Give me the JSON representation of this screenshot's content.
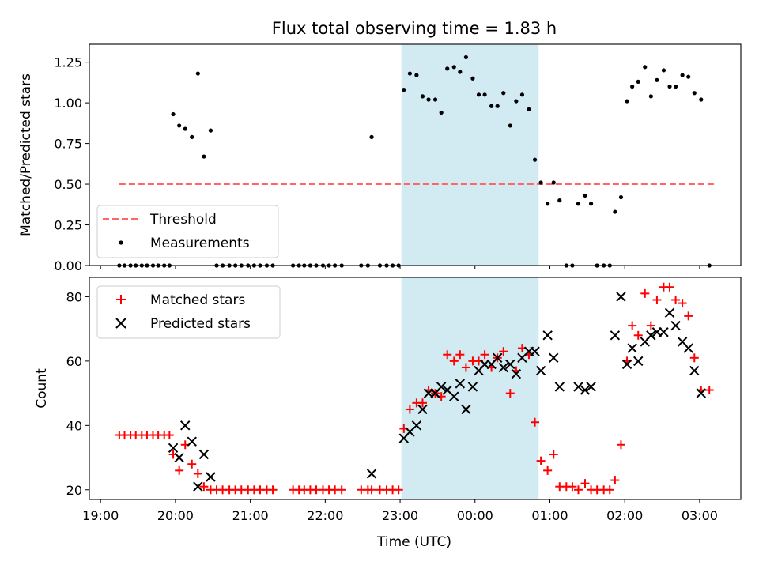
{
  "figure": {
    "title": "Flux total observing time = 1.83 h"
  },
  "chart_data": [
    {
      "type": "scatter",
      "panel": "top",
      "title": "Flux total observing time = 1.83 h",
      "xlabel": "",
      "ylabel": "Matched/Predicted stars",
      "x_tick_labels": [
        "19:00",
        "20:00",
        "21:00",
        "22:00",
        "23:00",
        "00:00",
        "01:00",
        "02:00",
        "03:00"
      ],
      "xlim_hours": [
        18.85,
        27.55
      ],
      "ylim": [
        0.0,
        1.36
      ],
      "y_ticks": [
        0.0,
        0.25,
        0.5,
        0.75,
        1.0,
        1.25
      ],
      "y_tick_labels": [
        "0.00",
        "0.25",
        "0.50",
        "0.75",
        "1.00",
        "1.25"
      ],
      "shaded_interval_hours": [
        23.017,
        24.85
      ],
      "shaded_color": "#add8e6",
      "legend_position": "lower-left",
      "series": [
        {
          "name": "Threshold",
          "style": "dashed-line",
          "color": "#ff6666",
          "x_hours": [
            19.25,
            27.2
          ],
          "y": [
            0.5,
            0.5
          ]
        },
        {
          "name": "Measurements",
          "style": "dot",
          "color": "#000000",
          "x_hours": [
            19.25,
            19.32,
            19.4,
            19.47,
            19.55,
            19.62,
            19.7,
            19.77,
            19.85,
            19.92,
            19.97,
            20.05,
            20.13,
            20.22,
            20.3,
            20.38,
            20.47,
            20.55,
            20.63,
            20.72,
            20.8,
            20.88,
            20.97,
            21.05,
            21.13,
            21.22,
            21.3,
            21.57,
            21.65,
            21.72,
            21.8,
            21.88,
            21.97,
            22.05,
            22.13,
            22.22,
            22.48,
            22.57,
            22.62,
            22.73,
            22.82,
            22.9,
            22.98,
            23.05,
            23.13,
            23.22,
            23.3,
            23.38,
            23.47,
            23.55,
            23.63,
            23.72,
            23.8,
            23.88,
            23.97,
            24.05,
            24.13,
            24.22,
            24.3,
            24.38,
            24.47,
            24.55,
            24.63,
            24.72,
            24.8,
            24.88,
            24.97,
            25.05,
            25.13,
            25.22,
            25.3,
            25.38,
            25.47,
            25.55,
            25.63,
            25.72,
            25.8,
            25.87,
            25.95,
            26.03,
            26.1,
            26.18,
            26.27,
            26.35,
            26.43,
            26.52,
            26.6,
            26.68,
            26.77,
            26.85,
            26.93,
            27.02,
            27.13
          ],
          "y": [
            0.0,
            0.0,
            0.0,
            0.0,
            0.0,
            0.0,
            0.0,
            0.0,
            0.0,
            0.0,
            0.93,
            0.86,
            0.84,
            0.79,
            1.18,
            0.67,
            0.83,
            0.0,
            0.0,
            0.0,
            0.0,
            0.0,
            0.0,
            0.0,
            0.0,
            0.0,
            0.0,
            0.0,
            0.0,
            0.0,
            0.0,
            0.0,
            0.0,
            0.0,
            0.0,
            0.0,
            0.0,
            0.0,
            0.79,
            0.0,
            0.0,
            0.0,
            0.0,
            1.08,
            1.18,
            1.17,
            1.04,
            1.02,
            1.02,
            0.94,
            1.21,
            1.22,
            1.19,
            1.28,
            1.15,
            1.05,
            1.05,
            0.98,
            0.98,
            1.06,
            0.86,
            1.01,
            1.05,
            0.96,
            0.65,
            0.51,
            0.38,
            0.51,
            0.4,
            0.0,
            0.0,
            0.38,
            0.43,
            0.38,
            0.0,
            0.0,
            0.0,
            0.33,
            0.42,
            1.01,
            1.1,
            1.13,
            1.22,
            1.04,
            1.14,
            1.2,
            1.1,
            1.1,
            1.17,
            1.16,
            1.06,
            1.02,
            0.0
          ]
        }
      ]
    },
    {
      "type": "scatter",
      "panel": "bottom",
      "title": "",
      "xlabel": "Time (UTC)",
      "ylabel": "Count",
      "x_tick_labels": [
        "19:00",
        "20:00",
        "21:00",
        "22:00",
        "23:00",
        "00:00",
        "01:00",
        "02:00",
        "03:00"
      ],
      "xlim_hours": [
        18.85,
        27.55
      ],
      "ylim": [
        17,
        86
      ],
      "y_ticks": [
        20,
        40,
        60,
        80
      ],
      "y_tick_labels": [
        "20",
        "40",
        "60",
        "80"
      ],
      "shaded_interval_hours": [
        23.017,
        24.85
      ],
      "shaded_color": "#add8e6",
      "legend_position": "upper-left",
      "series": [
        {
          "name": "Matched stars",
          "marker": "plus",
          "color": "#ff0000",
          "x_hours": [
            19.25,
            19.32,
            19.4,
            19.47,
            19.55,
            19.62,
            19.7,
            19.77,
            19.85,
            19.92,
            19.97,
            20.05,
            20.13,
            20.22,
            20.3,
            20.38,
            20.47,
            20.55,
            20.63,
            20.72,
            20.8,
            20.88,
            20.97,
            21.05,
            21.13,
            21.22,
            21.3,
            21.57,
            21.65,
            21.72,
            21.8,
            21.88,
            21.97,
            22.05,
            22.13,
            22.22,
            22.48,
            22.57,
            22.62,
            22.73,
            22.82,
            22.9,
            22.98,
            23.05,
            23.13,
            23.22,
            23.3,
            23.38,
            23.47,
            23.55,
            23.63,
            23.72,
            23.8,
            23.88,
            23.97,
            24.05,
            24.13,
            24.22,
            24.3,
            24.38,
            24.47,
            24.55,
            24.63,
            24.72,
            24.8,
            24.88,
            24.97,
            25.05,
            25.13,
            25.22,
            25.3,
            25.38,
            25.47,
            25.55,
            25.63,
            25.72,
            25.8,
            25.87,
            25.95,
            26.03,
            26.1,
            26.18,
            26.27,
            26.35,
            26.43,
            26.52,
            26.6,
            26.68,
            26.77,
            26.85,
            26.93,
            27.02,
            27.13
          ],
          "y": [
            37,
            37,
            37,
            37,
            37,
            37,
            37,
            37,
            37,
            37,
            31,
            26,
            34,
            28,
            25,
            21,
            20,
            20,
            20,
            20,
            20,
            20,
            20,
            20,
            20,
            20,
            20,
            20,
            20,
            20,
            20,
            20,
            20,
            20,
            20,
            20,
            20,
            20,
            20,
            20,
            20,
            20,
            20,
            39,
            45,
            47,
            47,
            51,
            50,
            49,
            62,
            60,
            62,
            58,
            60,
            60,
            62,
            58,
            61,
            63,
            50,
            57,
            64,
            62,
            41,
            29,
            26,
            31,
            21,
            21,
            21,
            20,
            22,
            20,
            20,
            20,
            20,
            23,
            34,
            60,
            71,
            68,
            81,
            71,
            79,
            83,
            83,
            79,
            78,
            74,
            61,
            51,
            51
          ]
        },
        {
          "name": "Predicted stars",
          "marker": "x",
          "color": "#000000",
          "x_hours": [
            19.97,
            20.05,
            20.13,
            20.22,
            20.3,
            20.38,
            20.47,
            22.62,
            23.05,
            23.13,
            23.22,
            23.3,
            23.38,
            23.47,
            23.55,
            23.63,
            23.72,
            23.8,
            23.88,
            23.97,
            24.05,
            24.13,
            24.22,
            24.3,
            24.38,
            24.47,
            24.55,
            24.63,
            24.72,
            24.8,
            24.88,
            24.97,
            25.05,
            25.13,
            25.38,
            25.47,
            25.55,
            25.87,
            25.95,
            26.03,
            26.1,
            26.18,
            26.27,
            26.35,
            26.43,
            26.52,
            26.6,
            26.68,
            26.77,
            26.85,
            26.93,
            27.02
          ],
          "y": [
            33,
            30,
            40,
            35,
            21,
            31,
            24,
            25,
            36,
            38,
            40,
            45,
            50,
            50,
            52,
            51,
            49,
            53,
            45,
            52,
            57,
            59,
            59,
            61,
            58,
            59,
            56,
            61,
            63,
            63,
            57,
            68,
            61,
            52,
            52,
            51,
            52,
            68,
            80,
            59,
            64,
            60,
            66,
            68,
            69,
            69,
            75,
            71,
            66,
            64,
            57,
            50
          ]
        }
      ]
    }
  ]
}
